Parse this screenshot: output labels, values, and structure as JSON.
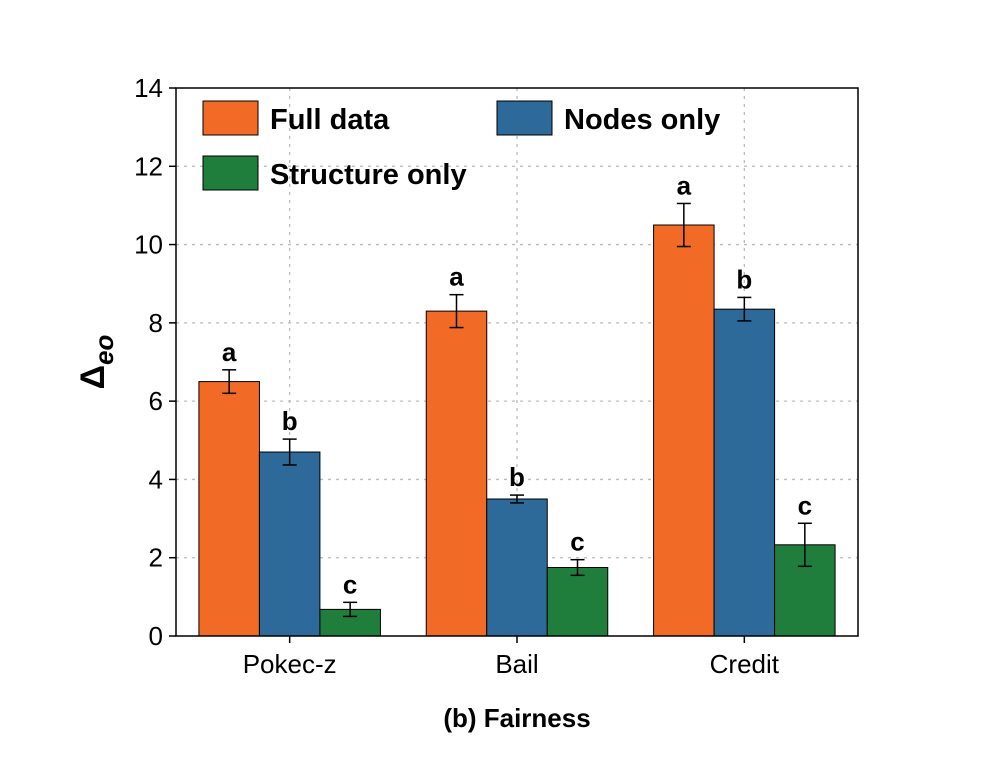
{
  "chart_data": {
    "type": "bar",
    "xlabel": "(b) Fairness",
    "ylabel": "Δ",
    "ylabel_subscript": "eo",
    "categories": [
      "Pokec-z",
      "Bail",
      "Credit"
    ],
    "ylim": [
      0,
      14
    ],
    "yticks": [
      0,
      2,
      4,
      6,
      8,
      10,
      12,
      14
    ],
    "grid": true,
    "legend_position": "top",
    "series": [
      {
        "name": "Full data",
        "color": "#f26b26",
        "values": [
          6.5,
          8.3,
          10.5
        ],
        "errors": [
          0.3,
          0.42,
          0.55
        ],
        "labels": [
          "a",
          "a",
          "a"
        ]
      },
      {
        "name": "Nodes only",
        "color": "#2d6a9a",
        "values": [
          4.7,
          3.5,
          8.35
        ],
        "errors": [
          0.33,
          0.1,
          0.3
        ],
        "labels": [
          "b",
          "b",
          "b"
        ]
      },
      {
        "name": "Structure only",
        "color": "#1f7e3c",
        "values": [
          0.68,
          1.75,
          2.33
        ],
        "errors": [
          0.18,
          0.2,
          0.55
        ],
        "labels": [
          "c",
          "c",
          "c"
        ]
      }
    ]
  }
}
